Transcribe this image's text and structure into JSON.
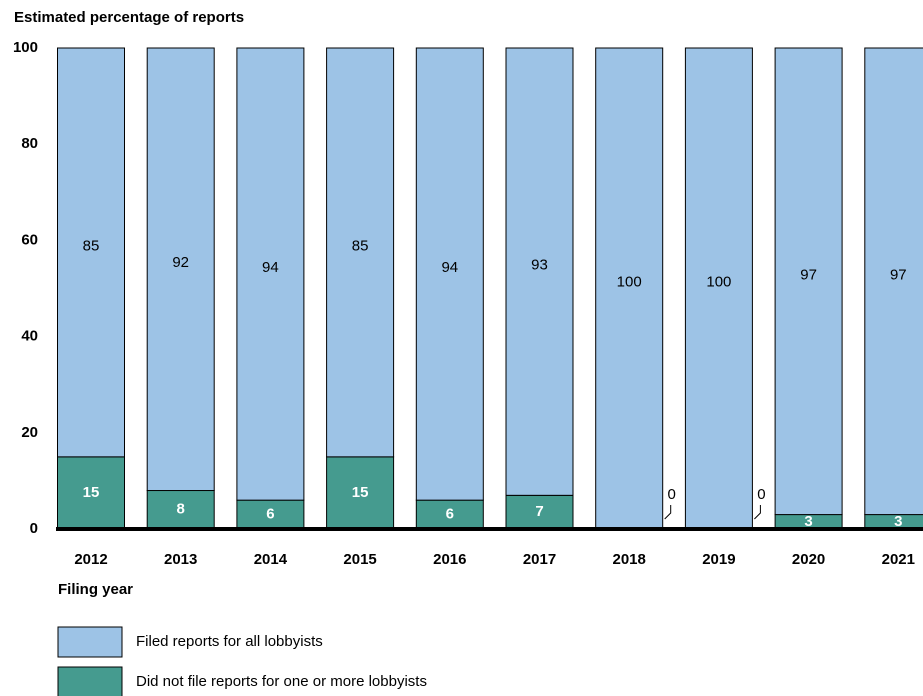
{
  "chart_data": {
    "type": "stacked_bar",
    "y_axis_label": "Estimated percentage of reports",
    "x_axis_label": "Filing year",
    "categories": [
      "2012",
      "2013",
      "2014",
      "2015",
      "2016",
      "2017",
      "2018",
      "2019",
      "2020",
      "2021"
    ],
    "series": [
      {
        "name": "Filed reports for all lobbyists",
        "color": "#9dc3e6",
        "values": [
          85,
          92,
          94,
          85,
          94,
          93,
          100,
          100,
          97,
          97
        ]
      },
      {
        "name": "Did not file reports for one or more lobbyists",
        "color": "#459b8f",
        "values": [
          15,
          8,
          6,
          15,
          6,
          7,
          0,
          0,
          3,
          3
        ]
      }
    ],
    "ylim": [
      0,
      100
    ],
    "yticks": [
      0,
      20,
      40,
      60,
      80,
      100
    ]
  }
}
